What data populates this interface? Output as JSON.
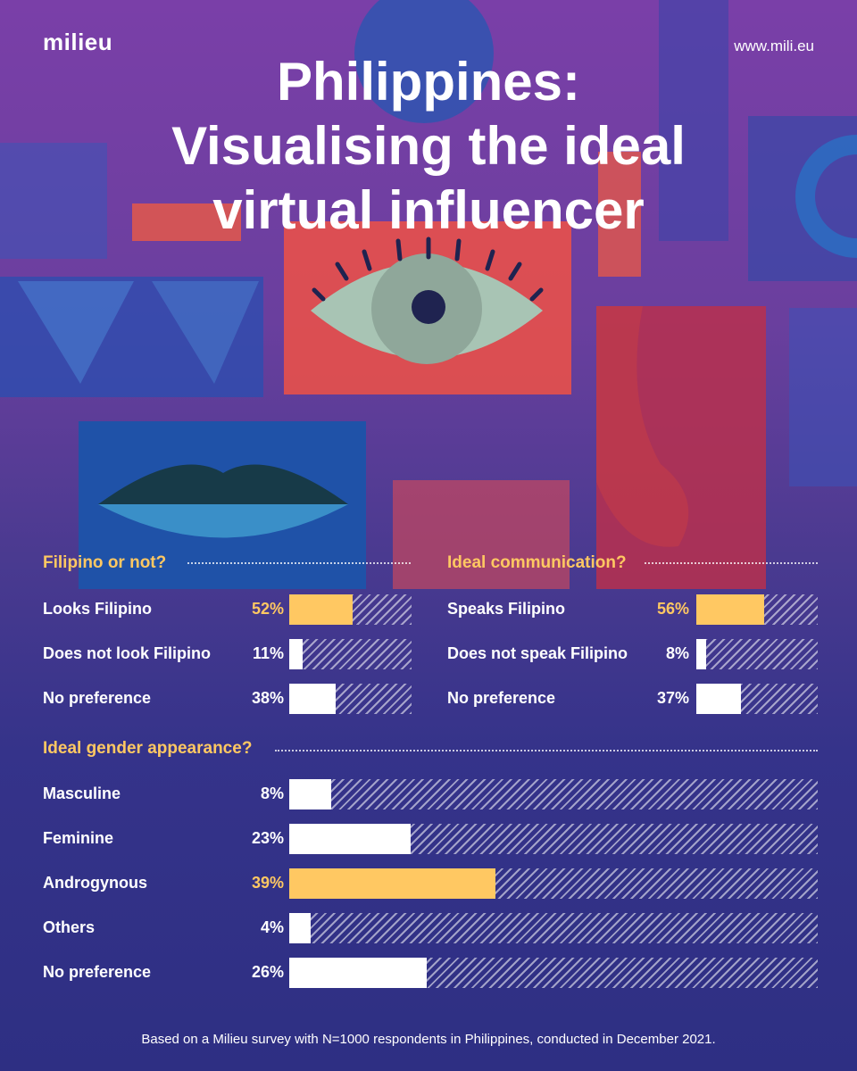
{
  "brand": "milieu",
  "url": "www.mili.eu",
  "title_lines": [
    "Philippines:",
    "Visualising the ideal",
    "virtual influencer"
  ],
  "colors": {
    "highlight": "#ffc862",
    "bar": "#ffffff",
    "background_top": "#7a3fa8",
    "background_bottom": "#2e2f83"
  },
  "chart_data": [
    {
      "type": "bar",
      "title": "Filipino or not?",
      "categories": [
        "Looks Filipino",
        "Does not look Filipino",
        "No preference"
      ],
      "values": [
        52,
        11,
        38
      ],
      "labels": [
        "52%",
        "11%",
        "38%"
      ],
      "highlight_index": 0,
      "unit": "%",
      "xlim": [
        0,
        100
      ]
    },
    {
      "type": "bar",
      "title": "Ideal communication?",
      "categories": [
        "Speaks Filipino",
        "Does not speak Filipino",
        "No preference"
      ],
      "values": [
        56,
        8,
        37
      ],
      "labels": [
        "56%",
        "8%",
        "37%"
      ],
      "highlight_index": 0,
      "unit": "%",
      "xlim": [
        0,
        100
      ]
    },
    {
      "type": "bar",
      "title": "Ideal gender appearance?",
      "categories": [
        "Masculine",
        "Feminine",
        "Androgynous",
        "Others",
        "No preference"
      ],
      "values": [
        8,
        23,
        39,
        4,
        26
      ],
      "labels": [
        "8%",
        "23%",
        "39%",
        "4%",
        "26%"
      ],
      "highlight_index": 2,
      "unit": "%",
      "xlim": [
        0,
        100
      ]
    }
  ],
  "footer": "Based on a Milieu survey with N=1000 respondents in Philippines, conducted in December 2021."
}
